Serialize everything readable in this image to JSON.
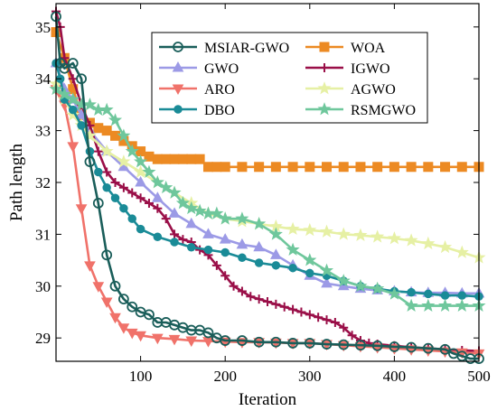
{
  "chart_data": {
    "type": "line",
    "xlabel": "Iteration",
    "ylabel": "Path length",
    "xlim": [
      0,
      500
    ],
    "ylim": [
      28.55,
      35.45
    ],
    "xticks": [
      100,
      200,
      300,
      400,
      500
    ],
    "yticks": [
      29,
      30,
      31,
      32,
      33,
      34,
      35
    ],
    "grid": false,
    "legend_position": "top-right",
    "series": [
      {
        "name": "MSIAR-GWO",
        "color": "#1a5e5a",
        "marker": "circle-open",
        "x": [
          0,
          5,
          10,
          20,
          30,
          40,
          50,
          60,
          70,
          80,
          90,
          100,
          110,
          120,
          130,
          140,
          150,
          160,
          170,
          180,
          190,
          200,
          220,
          240,
          260,
          280,
          300,
          320,
          340,
          360,
          380,
          400,
          420,
          440,
          460,
          470,
          480,
          490,
          500
        ],
        "y": [
          35.2,
          34.3,
          34.2,
          34.3,
          34.0,
          32.4,
          31.6,
          30.6,
          30.0,
          29.75,
          29.6,
          29.5,
          29.45,
          29.3,
          29.3,
          29.25,
          29.2,
          29.15,
          29.15,
          29.1,
          29.0,
          28.95,
          28.95,
          28.92,
          28.92,
          28.9,
          28.9,
          28.88,
          28.87,
          28.86,
          28.85,
          28.83,
          28.82,
          28.8,
          28.78,
          28.7,
          28.65,
          28.6,
          28.6
        ]
      },
      {
        "name": "WOA",
        "color": "#ec8a23",
        "marker": "square",
        "x": [
          0,
          10,
          20,
          30,
          40,
          50,
          60,
          70,
          80,
          90,
          100,
          110,
          120,
          130,
          140,
          150,
          160,
          170,
          180,
          190,
          200,
          220,
          240,
          260,
          280,
          300,
          320,
          340,
          360,
          380,
          400,
          420,
          440,
          460,
          480,
          500
        ],
        "y": [
          34.9,
          34.4,
          33.8,
          33.3,
          33.15,
          33.05,
          33.0,
          32.9,
          32.8,
          32.7,
          32.6,
          32.5,
          32.45,
          32.45,
          32.45,
          32.45,
          32.45,
          32.45,
          32.3,
          32.3,
          32.3,
          32.3,
          32.3,
          32.3,
          32.3,
          32.3,
          32.3,
          32.3,
          32.3,
          32.3,
          32.3,
          32.3,
          32.3,
          32.3,
          32.3,
          32.3
        ]
      },
      {
        "name": "GWO",
        "color": "#9c9ae6",
        "marker": "triangle-up",
        "x": [
          0,
          10,
          20,
          30,
          40,
          60,
          80,
          100,
          120,
          140,
          160,
          180,
          200,
          220,
          240,
          260,
          280,
          300,
          320,
          340,
          360,
          380,
          400,
          420,
          440,
          460,
          480,
          500
        ],
        "y": [
          34.3,
          33.8,
          33.6,
          33.3,
          33.0,
          32.6,
          32.3,
          32.0,
          31.7,
          31.4,
          31.2,
          31.0,
          30.9,
          30.8,
          30.75,
          30.6,
          30.4,
          30.2,
          30.05,
          30.0,
          29.95,
          29.92,
          29.9,
          29.88,
          29.87,
          29.87,
          29.86,
          29.86
        ]
      },
      {
        "name": "IGWO",
        "color": "#9a0f48",
        "marker": "plus",
        "x": [
          0,
          5,
          10,
          20,
          30,
          40,
          50,
          60,
          70,
          80,
          90,
          100,
          110,
          120,
          130,
          140,
          150,
          160,
          170,
          180,
          190,
          200,
          210,
          220,
          230,
          240,
          250,
          260,
          270,
          280,
          290,
          300,
          310,
          320,
          330,
          340,
          350,
          360,
          370,
          380,
          400,
          420,
          440,
          460,
          480,
          500
        ],
        "y": [
          35.3,
          35.0,
          34.4,
          34.0,
          33.5,
          33.1,
          32.6,
          32.2,
          32.0,
          31.9,
          31.8,
          31.7,
          31.6,
          31.5,
          31.3,
          31.0,
          30.9,
          30.85,
          30.7,
          30.6,
          30.4,
          30.2,
          30.0,
          29.9,
          29.8,
          29.75,
          29.7,
          29.65,
          29.6,
          29.55,
          29.5,
          29.45,
          29.4,
          29.35,
          29.3,
          29.2,
          29.05,
          28.95,
          28.9,
          28.88,
          28.85,
          28.82,
          28.8,
          28.78,
          28.76,
          28.75
        ]
      },
      {
        "name": "ARO",
        "color": "#f0726a",
        "marker": "triangle-down",
        "x": [
          0,
          5,
          10,
          20,
          30,
          40,
          50,
          60,
          70,
          80,
          90,
          100,
          120,
          140,
          160,
          180,
          200,
          220,
          240,
          260,
          280,
          300,
          320,
          340,
          360,
          380,
          400,
          420,
          440,
          460,
          480,
          500
        ],
        "y": [
          33.8,
          33.7,
          33.5,
          32.7,
          31.5,
          30.4,
          30.0,
          29.7,
          29.4,
          29.2,
          29.1,
          29.05,
          29.0,
          28.98,
          28.95,
          28.94,
          28.93,
          28.92,
          28.92,
          28.91,
          28.9,
          28.9,
          28.88,
          28.86,
          28.84,
          28.82,
          28.8,
          28.78,
          28.76,
          28.74,
          28.72,
          28.7
        ]
      },
      {
        "name": "AGWO",
        "color": "#e6f0a4",
        "marker": "star",
        "x": [
          0,
          10,
          20,
          30,
          40,
          60,
          80,
          100,
          120,
          140,
          160,
          180,
          200,
          220,
          240,
          260,
          280,
          300,
          320,
          340,
          360,
          380,
          400,
          420,
          440,
          460,
          480,
          500
        ],
        "y": [
          33.9,
          33.6,
          33.3,
          33.1,
          32.9,
          32.6,
          32.4,
          32.2,
          32.0,
          31.8,
          31.6,
          31.4,
          31.3,
          31.25,
          31.2,
          31.15,
          31.1,
          31.08,
          31.05,
          31.0,
          30.98,
          30.95,
          30.92,
          30.88,
          30.82,
          30.75,
          30.65,
          30.55
        ]
      },
      {
        "name": "DBO",
        "color": "#1a8b97",
        "marker": "circle-filled",
        "x": [
          0,
          5,
          10,
          20,
          30,
          40,
          50,
          60,
          70,
          80,
          90,
          100,
          120,
          140,
          160,
          180,
          200,
          220,
          240,
          260,
          280,
          300,
          320,
          340,
          360,
          380,
          400,
          420,
          440,
          460,
          480,
          500
        ],
        "y": [
          34.3,
          34.0,
          33.6,
          33.4,
          33.1,
          32.6,
          32.2,
          31.9,
          31.7,
          31.5,
          31.3,
          31.1,
          30.95,
          30.85,
          30.75,
          30.7,
          30.65,
          30.55,
          30.45,
          30.4,
          30.35,
          30.25,
          30.2,
          30.1,
          30.0,
          29.95,
          29.9,
          29.88,
          29.85,
          29.82,
          29.82,
          29.8
        ]
      },
      {
        "name": "RSMGWO",
        "color": "#6fc79c",
        "marker": "star",
        "x": [
          0,
          10,
          20,
          30,
          40,
          50,
          60,
          70,
          80,
          90,
          100,
          110,
          120,
          130,
          140,
          150,
          160,
          170,
          180,
          190,
          200,
          220,
          240,
          260,
          280,
          300,
          320,
          340,
          360,
          380,
          400,
          420,
          440,
          460,
          480,
          500
        ],
        "y": [
          33.8,
          33.7,
          33.6,
          33.5,
          33.5,
          33.4,
          33.4,
          33.2,
          32.9,
          32.6,
          32.4,
          32.2,
          32.0,
          31.9,
          31.8,
          31.6,
          31.5,
          31.45,
          31.4,
          31.4,
          31.3,
          31.3,
          31.2,
          31.0,
          30.7,
          30.5,
          30.3,
          30.1,
          30.0,
          29.95,
          29.85,
          29.62,
          29.62,
          29.62,
          29.62,
          29.62
        ]
      }
    ],
    "legend_order": [
      "MSIAR-GWO",
      "WOA",
      "GWO",
      "IGWO",
      "ARO",
      "AGWO",
      "DBO",
      "RSMGWO"
    ]
  }
}
